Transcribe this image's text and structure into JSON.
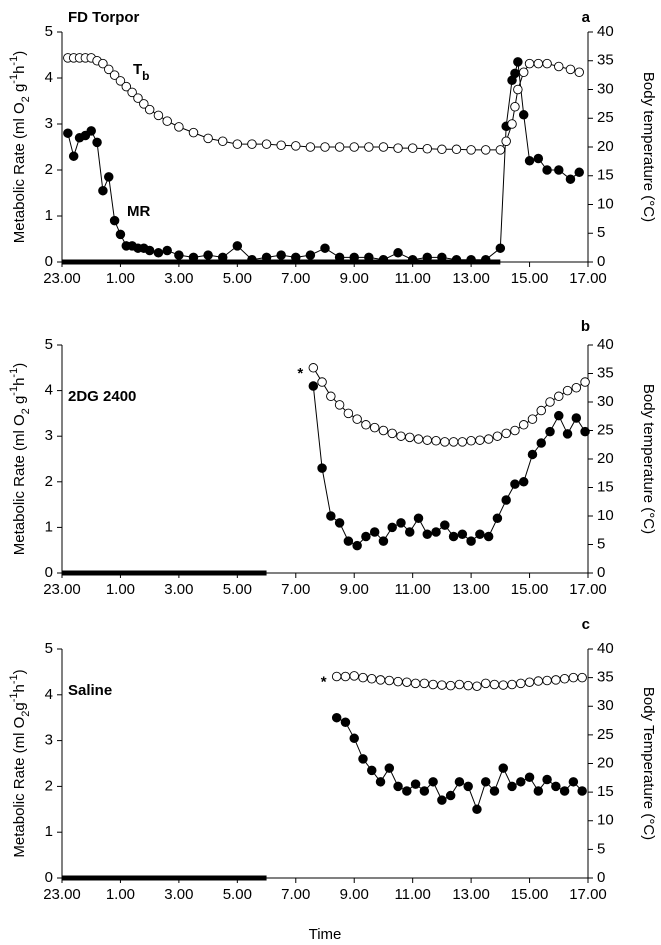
{
  "chart_data": [
    {
      "type": "line",
      "title": "FD Torpor",
      "panel": "a",
      "ylabel": [
        [
          "Metabolic Rate (ml O",
          ""
        ],
        [
          "2",
          "sub"
        ],
        [
          " g",
          ""
        ],
        [
          "-1",
          "sup"
        ],
        [
          "h",
          ""
        ],
        [
          "-1",
          "sup"
        ],
        [
          ")",
          ""
        ]
      ],
      "y2label": "Body temperature (°C)",
      "tb_label": {
        "text": "T",
        "sub": "b"
      },
      "mr_label": "MR",
      "dark": [
        0,
        15
      ],
      "xlim": [
        0,
        18
      ],
      "xticks": [
        {
          "value": 0,
          "label": "23.00"
        },
        {
          "value": 2,
          "label": "1.00"
        },
        {
          "value": 4,
          "label": "3.00"
        },
        {
          "value": 6,
          "label": "5.00"
        },
        {
          "value": 8,
          "label": "7.00"
        },
        {
          "value": 10,
          "label": "9.00"
        },
        {
          "value": 12,
          "label": "11.00"
        },
        {
          "value": 14,
          "label": "13.00"
        },
        {
          "value": 16,
          "label": "15.00"
        },
        {
          "value": 18,
          "label": "17.00"
        }
      ],
      "ylim": [
        0,
        5
      ],
      "yticks": [
        0,
        1,
        2,
        3,
        4,
        5
      ],
      "y2lim": [
        0,
        40
      ],
      "y2ticks": [
        0,
        5,
        10,
        15,
        20,
        25,
        30,
        35,
        40
      ],
      "x": [
        0.2,
        0.4,
        0.6,
        0.8,
        1.0,
        1.2,
        1.4,
        1.6,
        1.8,
        2.0,
        2.2,
        2.4,
        2.6,
        2.8,
        3.0,
        3.3,
        3.6,
        4.0,
        4.5,
        5.0,
        5.5,
        6.0,
        6.5,
        7.0,
        7.5,
        8.0,
        8.5,
        9.0,
        9.5,
        10.0,
        10.5,
        11.0,
        11.5,
        12.0,
        12.5,
        13.0,
        13.5,
        14.0,
        14.5,
        15.0,
        15.2,
        15.4,
        15.5,
        15.6,
        15.8,
        16.0,
        16.3,
        16.6,
        17.0,
        17.4,
        17.7
      ],
      "series": [
        {
          "marker": "filled",
          "color": "#000000",
          "axis": "y",
          "values": [
            2.8,
            2.3,
            2.7,
            2.75,
            2.85,
            2.6,
            1.55,
            1.85,
            0.9,
            0.6,
            0.35,
            0.35,
            0.3,
            0.3,
            0.25,
            0.2,
            0.25,
            0.15,
            0.1,
            0.15,
            0.1,
            0.35,
            0.05,
            0.1,
            0.15,
            0.1,
            0.15,
            0.3,
            0.1,
            0.1,
            0.1,
            0.05,
            0.2,
            0.05,
            0.1,
            0.1,
            0.05,
            0.05,
            0.05,
            0.3,
            2.95,
            3.95,
            4.1,
            4.35,
            3.2,
            2.2,
            2.25,
            2.0,
            2.0,
            1.8,
            1.95
          ]
        },
        {
          "marker": "open",
          "color": "#000000",
          "axis": "y2",
          "values": [
            35.5,
            35.5,
            35.5,
            35.5,
            35.5,
            35,
            34.5,
            33.5,
            32.5,
            31.5,
            30.5,
            29.5,
            28.5,
            27.5,
            26.5,
            25.5,
            24.5,
            23.5,
            22.5,
            21.5,
            21,
            20.5,
            20.5,
            20.5,
            20.3,
            20.2,
            20,
            20,
            20,
            20,
            20,
            20,
            19.8,
            19.8,
            19.7,
            19.6,
            19.6,
            19.5,
            19.5,
            19.5,
            21,
            24,
            27,
            30,
            33,
            34.5,
            34.5,
            34.5,
            34,
            33.5,
            33
          ]
        }
      ]
    },
    {
      "type": "line",
      "title": "2DG 2400",
      "panel": "b",
      "ylabel": [
        [
          "Metabolic Rate (ml O",
          ""
        ],
        [
          "2",
          "sub"
        ],
        [
          " g",
          ""
        ],
        [
          "-1",
          "sup"
        ],
        [
          "h",
          ""
        ],
        [
          "-1",
          "sup"
        ],
        [
          ")",
          ""
        ]
      ],
      "y2label": "Body temperature (°C)",
      "asterisk": "*",
      "dark": [
        0,
        7
      ],
      "xlim": [
        0,
        18
      ],
      "xticks": [
        {
          "value": 0,
          "label": "23.00"
        },
        {
          "value": 2,
          "label": "1.00"
        },
        {
          "value": 4,
          "label": "3.00"
        },
        {
          "value": 6,
          "label": "5.00"
        },
        {
          "value": 8,
          "label": "7.00"
        },
        {
          "value": 10,
          "label": "9.00"
        },
        {
          "value": 12,
          "label": "11.00"
        },
        {
          "value": 14,
          "label": "13.00"
        },
        {
          "value": 16,
          "label": "15.00"
        },
        {
          "value": 18,
          "label": "17.00"
        }
      ],
      "ylim": [
        0,
        5
      ],
      "yticks": [
        0,
        1,
        2,
        3,
        4,
        5
      ],
      "y2lim": [
        0,
        40
      ],
      "y2ticks": [
        0,
        5,
        10,
        15,
        20,
        25,
        30,
        35,
        40
      ],
      "x": [
        8.6,
        8.9,
        9.2,
        9.5,
        9.8,
        10.1,
        10.4,
        10.7,
        11.0,
        11.3,
        11.6,
        11.9,
        12.2,
        12.5,
        12.8,
        13.1,
        13.4,
        13.7,
        14.0,
        14.3,
        14.6,
        14.9,
        15.2,
        15.5,
        15.8,
        16.1,
        16.4,
        16.7,
        17.0,
        17.3,
        17.6,
        17.9
      ],
      "series": [
        {
          "marker": "filled",
          "color": "#000000",
          "axis": "y",
          "values": [
            4.1,
            2.3,
            1.25,
            1.1,
            0.7,
            0.6,
            0.8,
            0.9,
            0.7,
            1.0,
            1.1,
            0.9,
            1.2,
            0.85,
            0.9,
            1.05,
            0.8,
            0.85,
            0.7,
            0.85,
            0.8,
            1.2,
            1.6,
            1.95,
            2.0,
            2.6,
            2.85,
            3.1,
            3.45,
            3.05,
            3.4,
            3.1
          ]
        },
        {
          "marker": "open",
          "color": "#000000",
          "axis": "y2",
          "values": [
            36,
            33.5,
            31,
            29.5,
            28,
            27,
            26,
            25.5,
            25,
            24.5,
            24,
            23.8,
            23.5,
            23.3,
            23.2,
            23,
            23,
            23,
            23.2,
            23.3,
            23.5,
            24,
            24.5,
            25,
            26,
            27,
            28.5,
            30,
            31,
            32,
            32.5,
            33.5
          ]
        }
      ]
    },
    {
      "type": "line",
      "title": "Saline",
      "panel": "c",
      "ylabel": [
        [
          "Metabolic Rate (ml O",
          ""
        ],
        [
          "2",
          "sub"
        ],
        [
          "g",
          ""
        ],
        [
          "-1",
          "sup"
        ],
        [
          "h",
          ""
        ],
        [
          "-1",
          "sup"
        ],
        [
          ")",
          ""
        ]
      ],
      "y2label": "Body Temperature (°C)",
      "xlabel": "Time",
      "asterisk": "*",
      "dark": [
        0,
        7
      ],
      "xlim": [
        0,
        18
      ],
      "xticks": [
        {
          "value": 0,
          "label": "23.00"
        },
        {
          "value": 2,
          "label": "1.00"
        },
        {
          "value": 4,
          "label": "3.00"
        },
        {
          "value": 6,
          "label": "5.00"
        },
        {
          "value": 8,
          "label": "7.00"
        },
        {
          "value": 10,
          "label": "9.00"
        },
        {
          "value": 12,
          "label": "11.00"
        },
        {
          "value": 14,
          "label": "13.00"
        },
        {
          "value": 16,
          "label": "15.00"
        },
        {
          "value": 18,
          "label": "17.00"
        }
      ],
      "ylim": [
        0,
        5
      ],
      "yticks": [
        0,
        1,
        2,
        3,
        4,
        5
      ],
      "y2lim": [
        0,
        40
      ],
      "y2ticks": [
        0,
        5,
        10,
        15,
        20,
        25,
        30,
        35,
        40
      ],
      "x": [
        9.4,
        9.7,
        10.0,
        10.3,
        10.6,
        10.9,
        11.2,
        11.5,
        11.8,
        12.1,
        12.4,
        12.7,
        13.0,
        13.3,
        13.6,
        13.9,
        14.2,
        14.5,
        14.8,
        15.1,
        15.4,
        15.7,
        16.0,
        16.3,
        16.6,
        16.9,
        17.2,
        17.5,
        17.8
      ],
      "series": [
        {
          "marker": "filled",
          "color": "#000000",
          "axis": "y",
          "values": [
            3.5,
            3.4,
            3.05,
            2.6,
            2.35,
            2.1,
            2.4,
            2.0,
            1.9,
            2.05,
            1.9,
            2.1,
            1.7,
            1.8,
            2.1,
            2.0,
            1.5,
            2.1,
            1.9,
            2.4,
            2.0,
            2.1,
            2.2,
            1.9,
            2.15,
            2.0,
            1.9,
            2.1,
            1.9
          ]
        },
        {
          "marker": "open",
          "color": "#000000",
          "axis": "y2",
          "values": [
            35.2,
            35.2,
            35.3,
            35,
            34.8,
            34.6,
            34.5,
            34.3,
            34.2,
            34,
            34,
            33.8,
            33.7,
            33.6,
            33.8,
            33.6,
            33.5,
            34,
            33.8,
            33.7,
            33.8,
            34,
            34.2,
            34.4,
            34.5,
            34.6,
            34.8,
            35,
            35
          ]
        }
      ]
    }
  ]
}
